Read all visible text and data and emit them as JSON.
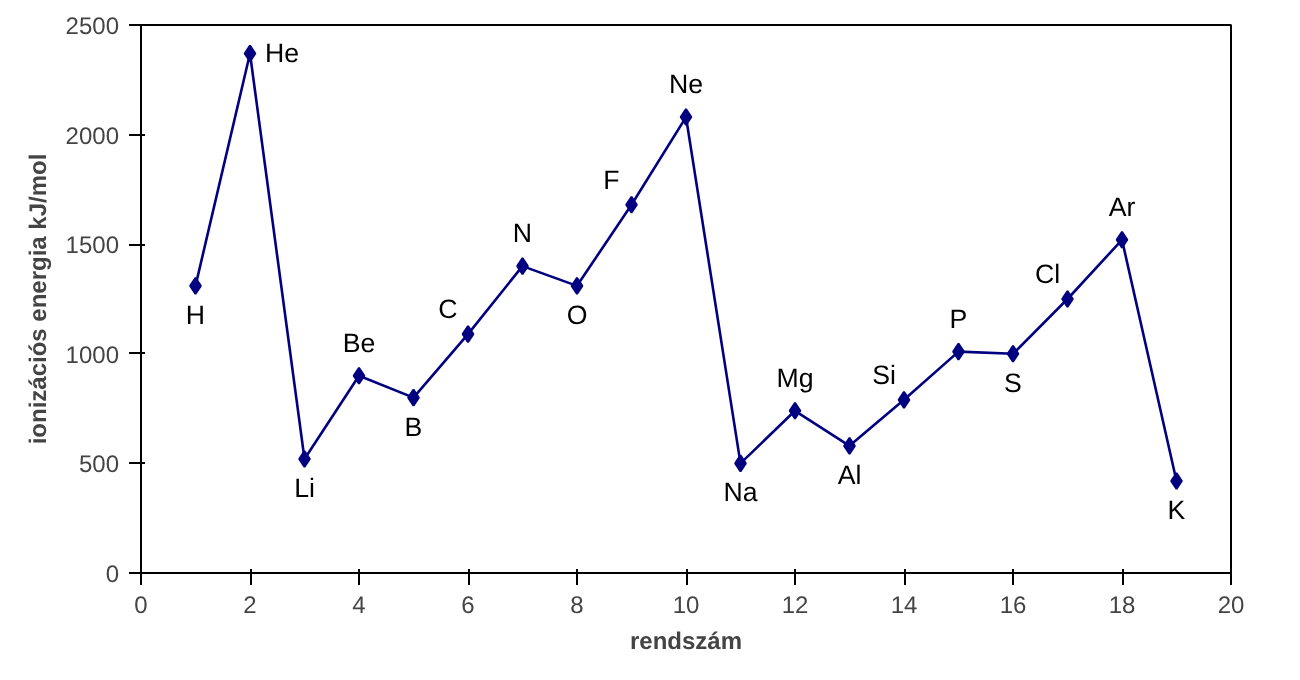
{
  "chart_data": {
    "type": "line",
    "xlabel": "rendszám",
    "ylabel": "ionizációs energia kJ/mol",
    "x": [
      1,
      2,
      3,
      4,
      5,
      6,
      7,
      8,
      9,
      10,
      11,
      12,
      13,
      14,
      15,
      16,
      17,
      18,
      19
    ],
    "series": [
      {
        "color": "#000080",
        "values": [
          1310,
          2370,
          520,
          900,
          800,
          1090,
          1400,
          1310,
          1680,
          2080,
          500,
          740,
          580,
          790,
          1010,
          1000,
          1250,
          1520,
          420
        ]
      }
    ],
    "xlim": [
      0,
      20
    ],
    "xticks": [
      0,
      2,
      4,
      6,
      8,
      10,
      12,
      14,
      16,
      18,
      20
    ],
    "ylim": [
      0,
      2500
    ],
    "yticks": [
      0,
      500,
      1000,
      1500,
      2000,
      2500
    ],
    "grid": false,
    "marker": "diamond",
    "line_style": "solid",
    "annotations": [
      {
        "text": "H",
        "x": 1,
        "y": 1310
      },
      {
        "text": "He",
        "x": 2,
        "y": 2370
      },
      {
        "text": "Li",
        "x": 3,
        "y": 520
      },
      {
        "text": "Be",
        "x": 4,
        "y": 900
      },
      {
        "text": "B",
        "x": 5,
        "y": 800
      },
      {
        "text": "C",
        "x": 6,
        "y": 1090
      },
      {
        "text": "N",
        "x": 7,
        "y": 1400
      },
      {
        "text": "O",
        "x": 8,
        "y": 1310
      },
      {
        "text": "F",
        "x": 9,
        "y": 1680
      },
      {
        "text": "Ne",
        "x": 10,
        "y": 2080
      },
      {
        "text": "Na",
        "x": 11,
        "y": 500
      },
      {
        "text": "Mg",
        "x": 12,
        "y": 740
      },
      {
        "text": "Al",
        "x": 13,
        "y": 580
      },
      {
        "text": "Si",
        "x": 14,
        "y": 790
      },
      {
        "text": "P",
        "x": 15,
        "y": 1010
      },
      {
        "text": "S",
        "x": 16,
        "y": 1000
      },
      {
        "text": "Cl",
        "x": 17,
        "y": 1250
      },
      {
        "text": "Ar",
        "x": 18,
        "y": 1520
      },
      {
        "text": "K",
        "x": 19,
        "y": 420
      }
    ]
  }
}
